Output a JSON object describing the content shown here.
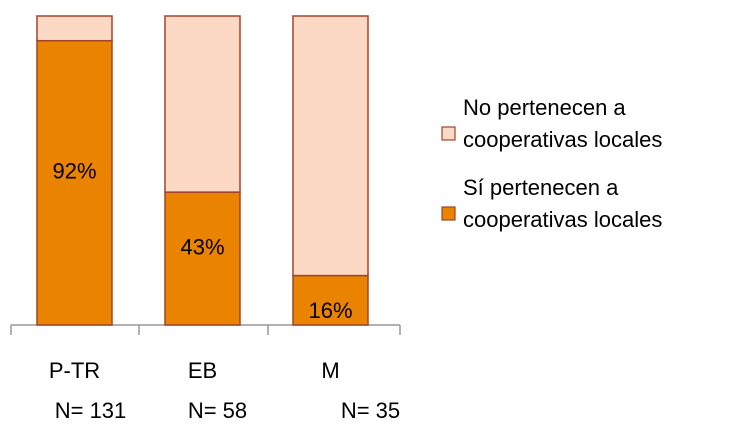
{
  "chart_data": {
    "type": "stacked-bar",
    "categories": [
      "P-TR",
      "EB",
      "M"
    ],
    "sample_sizes": [
      "N= 131",
      "N= 58",
      "N= 35"
    ],
    "series": [
      {
        "name": "Sí pertenecen a cooperativas locales",
        "color": "#e98300",
        "values": [
          92,
          43,
          16
        ],
        "value_labels": [
          "92%",
          "43%",
          "16%"
        ]
      },
      {
        "name": "No pertenecen a cooperativas locales",
        "color": "#fcd9c4",
        "values": [
          8,
          57,
          84
        ]
      }
    ],
    "legend": "right"
  }
}
